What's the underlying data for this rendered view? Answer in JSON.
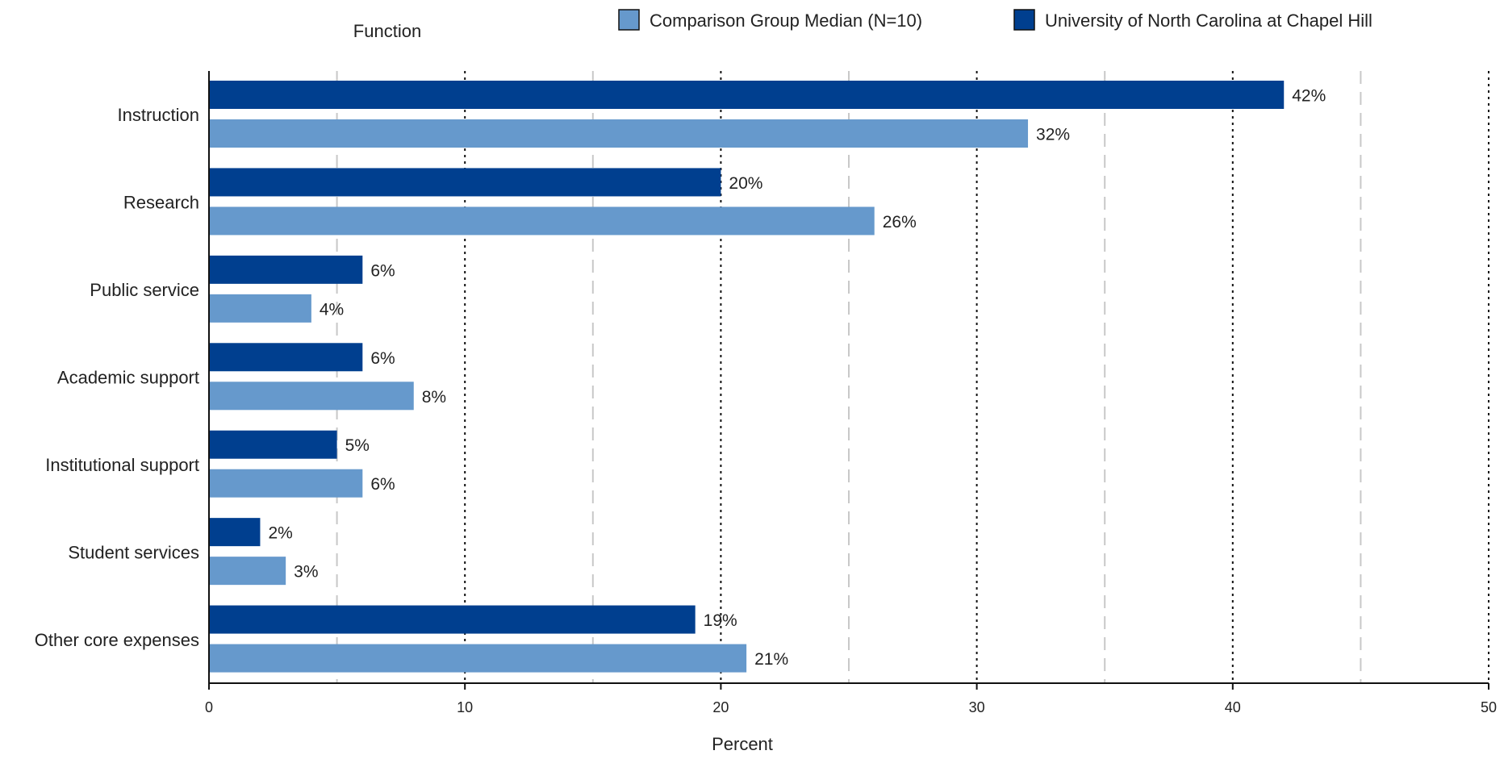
{
  "chart_data": {
    "type": "bar",
    "orientation": "horizontal",
    "ylabel": "Function",
    "xlabel": "Percent",
    "xlim": [
      0,
      50
    ],
    "x_ticks": [
      0,
      10,
      20,
      30,
      40,
      50
    ],
    "x_minor_gridlines": [
      5,
      15,
      25,
      35,
      45
    ],
    "grid": true,
    "legend_position": "top",
    "categories": [
      "Instruction",
      "Research",
      "Public service",
      "Academic support",
      "Institutional support",
      "Student services",
      "Other core expenses"
    ],
    "series": [
      {
        "name": "University of North Carolina at Chapel Hill",
        "color": "#003f8f",
        "values": [
          42,
          20,
          6,
          6,
          5,
          2,
          19
        ],
        "labels": [
          "42%",
          "20%",
          "6%",
          "6%",
          "5%",
          "2%",
          "19%"
        ]
      },
      {
        "name": "Comparison Group Median  (N=10)",
        "color": "#6699cc",
        "values": [
          32,
          26,
          4,
          8,
          6,
          3,
          21
        ],
        "labels": [
          "32%",
          "26%",
          "4%",
          "8%",
          "6%",
          "3%",
          "21%"
        ]
      }
    ],
    "legend_order": [
      1,
      0
    ]
  }
}
